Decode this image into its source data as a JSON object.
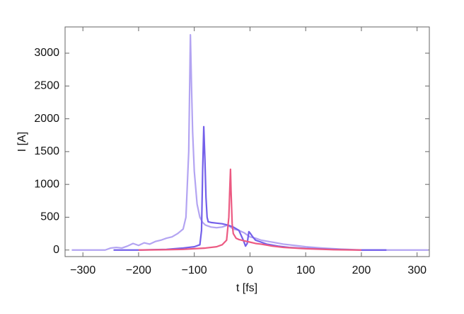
{
  "chart_data": {
    "type": "line",
    "x_label": "t [fs]",
    "y_label": "I [A]",
    "xlim": [
      -332,
      322
    ],
    "ylim": [
      -100,
      3400
    ],
    "xticks": [
      {
        "value": -300,
        "label": "−300"
      },
      {
        "value": -200,
        "label": "−200"
      },
      {
        "value": -100,
        "label": "−100"
      },
      0,
      100,
      200,
      300
    ],
    "yticks": [
      0,
      500,
      1000,
      1500,
      2000,
      2500,
      3000
    ],
    "series": [
      {
        "color": "#b3a4f2",
        "x": [
          -320,
          -260,
          -250,
          -240,
          -230,
          -220,
          -210,
          -200,
          -190,
          -180,
          -170,
          -160,
          -150,
          -140,
          -130,
          -120,
          -115,
          -110,
          -107,
          -105,
          -103,
          -100,
          -95,
          -90,
          -85,
          -80,
          -70,
          -60,
          -50,
          -40,
          -30,
          -20,
          -10,
          0,
          10,
          20,
          40,
          60,
          80,
          100,
          130,
          160,
          200,
          250,
          320
        ],
        "values": [
          0,
          0,
          30,
          40,
          30,
          60,
          100,
          70,
          110,
          90,
          130,
          150,
          180,
          200,
          250,
          320,
          500,
          1500,
          3280,
          2500,
          1800,
          1200,
          700,
          500,
          420,
          380,
          350,
          340,
          350,
          380,
          320,
          300,
          260,
          200,
          180,
          150,
          120,
          90,
          70,
          50,
          30,
          15,
          0,
          0,
          0
        ]
      },
      {
        "color": "#7460ea",
        "x": [
          -245,
          -200,
          -150,
          -120,
          -100,
          -90,
          -87,
          -85,
          -83,
          -81,
          -79,
          -77,
          -75,
          -70,
          -60,
          -50,
          -40,
          -30,
          -20,
          -12,
          -8,
          -5,
          -2,
          0,
          5,
          10,
          20,
          30,
          50,
          70,
          100,
          150,
          200,
          245
        ],
        "values": [
          0,
          0,
          10,
          30,
          50,
          80,
          300,
          1200,
          1880,
          1400,
          800,
          500,
          430,
          420,
          410,
          400,
          380,
          350,
          300,
          150,
          60,
          100,
          280,
          260,
          200,
          150,
          120,
          90,
          60,
          40,
          25,
          10,
          0,
          0
        ]
      },
      {
        "color": "#ec5a82",
        "x": [
          -200,
          -150,
          -120,
          -100,
          -80,
          -60,
          -50,
          -42,
          -38,
          -36,
          -35,
          -34,
          -32,
          -30,
          -25,
          -20,
          -10,
          0,
          10,
          20,
          40,
          60,
          100,
          150,
          200
        ],
        "values": [
          0,
          5,
          10,
          20,
          30,
          50,
          80,
          150,
          500,
          1000,
          1230,
          900,
          400,
          250,
          180,
          160,
          140,
          120,
          100,
          90,
          60,
          40,
          20,
          5,
          0
        ]
      }
    ]
  }
}
